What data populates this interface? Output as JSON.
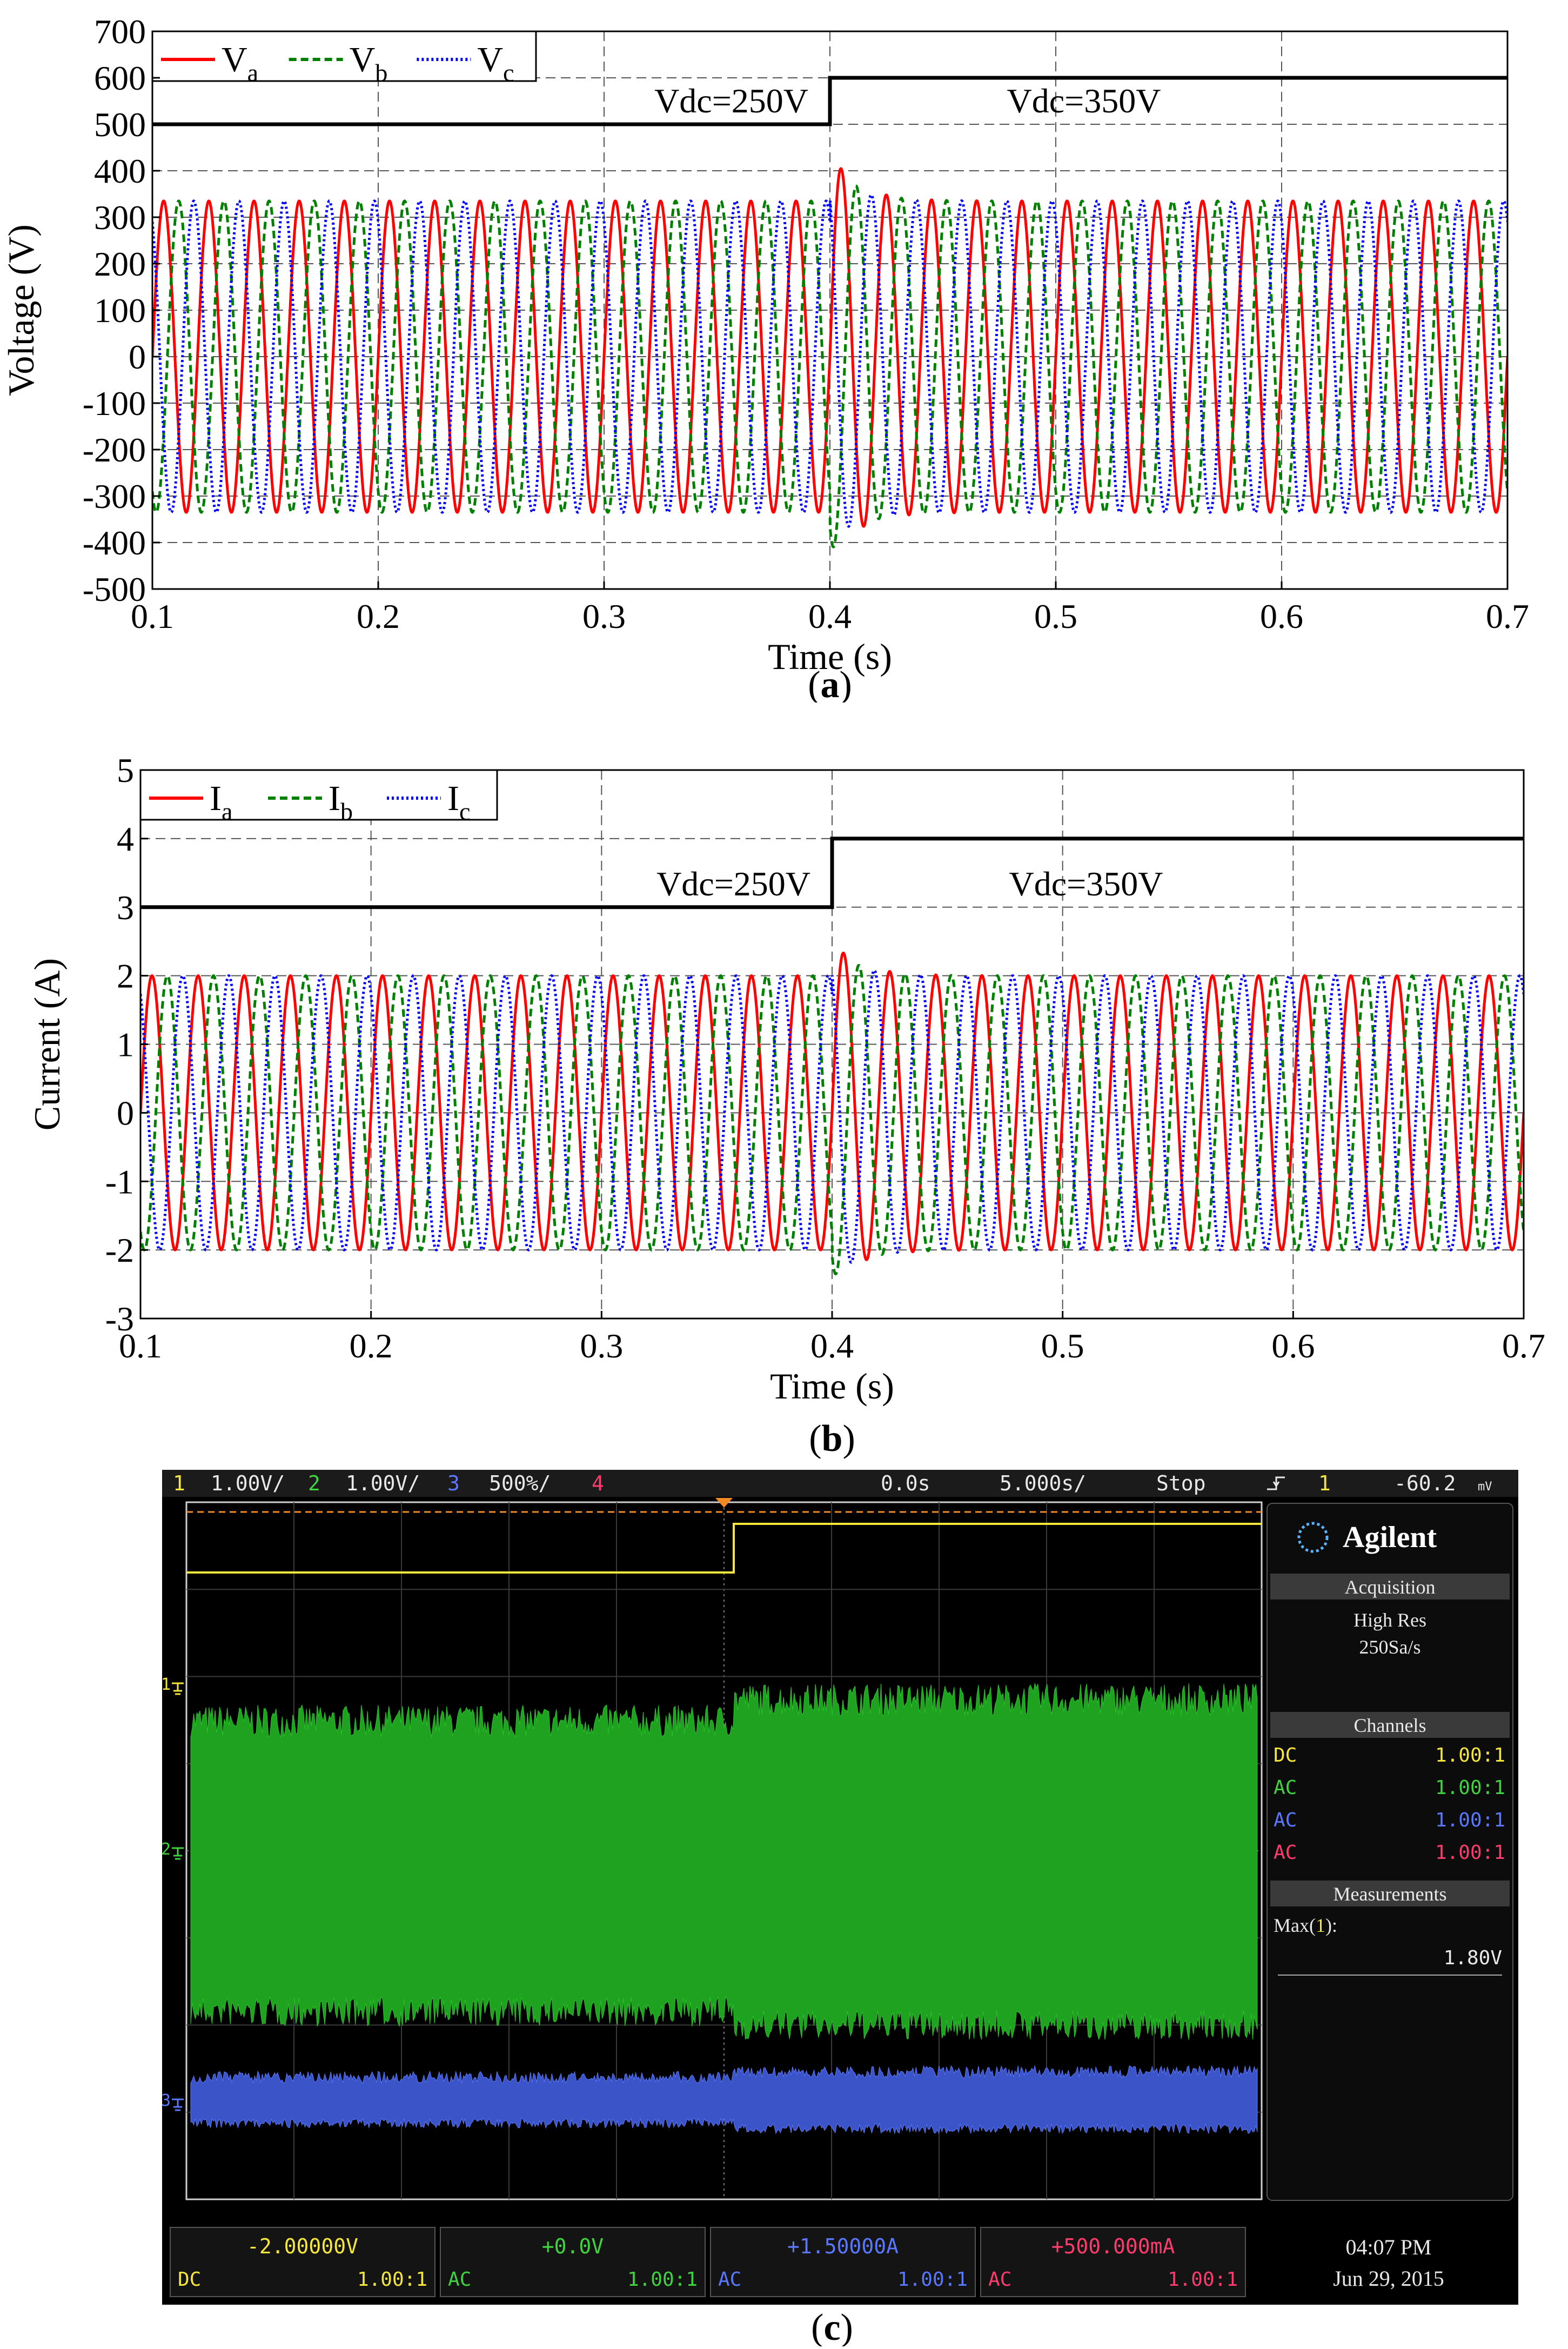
{
  "charts": {
    "a": {
      "type": "line",
      "caption_open": "(",
      "caption_letter": "a",
      "caption_close": ")",
      "xlabel": "Time (s)",
      "ylabel": "Voltage (V)",
      "xlim": [
        0.1,
        0.7
      ],
      "ylim": [
        -500,
        700
      ],
      "xticks": [
        "0.1",
        "0.2",
        "0.3",
        "0.4",
        "0.5",
        "0.6",
        "0.7"
      ],
      "yticks": [
        "-500",
        "-400",
        "-300",
        "-200",
        "-100",
        "0",
        "100",
        "200",
        "300",
        "400",
        "500",
        "600",
        "700"
      ],
      "legend": [
        {
          "base": "V",
          "sub": "a",
          "color": "#ff0000",
          "dash": "solid"
        },
        {
          "base": "V",
          "sub": "b",
          "color": "#008000",
          "dash": "dashed"
        },
        {
          "base": "V",
          "sub": "c",
          "color": "#0000ff",
          "dash": "dotted"
        }
      ],
      "amplitude": 335,
      "frequency_hz": 50,
      "step": {
        "t": 0.4,
        "before": 500,
        "after": 600,
        "overshoot": 440,
        "undershoot": -420
      },
      "annotations": [
        "Vdc=250V",
        "Vdc=350V"
      ]
    },
    "b": {
      "type": "line",
      "caption_open": "(",
      "caption_letter": "b",
      "caption_close": ")",
      "xlabel": "Time (s)",
      "ylabel": "Current (A)",
      "xlim": [
        0.1,
        0.7
      ],
      "ylim": [
        -3,
        5
      ],
      "xticks": [
        "0.1",
        "0.2",
        "0.3",
        "0.4",
        "0.5",
        "0.6",
        "0.7"
      ],
      "yticks": [
        "-3",
        "-2",
        "-1",
        "0",
        "1",
        "2",
        "3",
        "4",
        "5"
      ],
      "legend": [
        {
          "base": "I",
          "sub": "a",
          "color": "#ff0000",
          "dash": "solid"
        },
        {
          "base": "I",
          "sub": "b",
          "color": "#008000",
          "dash": "dashed"
        },
        {
          "base": "I",
          "sub": "c",
          "color": "#0000ff",
          "dash": "dotted"
        }
      ],
      "amplitude": 2,
      "frequency_hz": 50,
      "step": {
        "t": 0.4,
        "before": 3,
        "after": 4,
        "overshoot": 2.5,
        "undershoot": -2.4
      },
      "annotations": [
        "Vdc=250V",
        "Vdc=350V"
      ]
    }
  },
  "scope": {
    "caption_open": "(",
    "caption_letter": "c",
    "caption_close": ")",
    "top_bar": {
      "ch1_num": "1",
      "ch1_scale": "1.00V/",
      "ch2_num": "2",
      "ch2_scale": "1.00V/",
      "ch3_num": "3",
      "ch3_scale": "500%/",
      "ch4_num": "4",
      "time_offset": "0.0s",
      "time_scale": "5.000s/",
      "run_state": "Stop",
      "trigger_icon": "trigger-edge-icon",
      "trigger_ch": "1",
      "trigger_level": "-60.2",
      "trigger_unit": "mV"
    },
    "brand": "Agilent",
    "acquisition": {
      "title": "Acquisition",
      "mode": "High Res",
      "rate": "250Sa/s"
    },
    "channels": {
      "title": "Channels",
      "rows": [
        {
          "coupling": "DC",
          "ratio": "1.00:1",
          "color": "#f5e63c"
        },
        {
          "coupling": "AC",
          "ratio": "1.00:1",
          "color": "#3fd43f"
        },
        {
          "coupling": "AC",
          "ratio": "1.00:1",
          "color": "#5a78ff"
        },
        {
          "coupling": "AC",
          "ratio": "1.00:1",
          "color": "#ff3b6e"
        }
      ]
    },
    "measurements": {
      "title": "Measurements",
      "label_pre": "Max(",
      "label_ch": "1",
      "label_post": "):",
      "value": "1.80V"
    },
    "markers": [
      "1",
      "2",
      "3"
    ],
    "bottom": [
      {
        "offset": "-2.00000V",
        "coupling": "DC",
        "ratio": "1.00:1",
        "color": "#f5e63c"
      },
      {
        "offset": "+0.0V",
        "coupling": "AC",
        "ratio": "1.00:1",
        "color": "#3fd43f"
      },
      {
        "offset": "+1.50000A",
        "coupling": "AC",
        "ratio": "1.00:1",
        "color": "#5a78ff"
      },
      {
        "offset": "+500.000mA",
        "coupling": "AC",
        "ratio": "1.00:1",
        "color": "#ff3b6e"
      }
    ],
    "clock": {
      "time": "04:07 PM",
      "date": "Jun 29, 2015"
    }
  }
}
